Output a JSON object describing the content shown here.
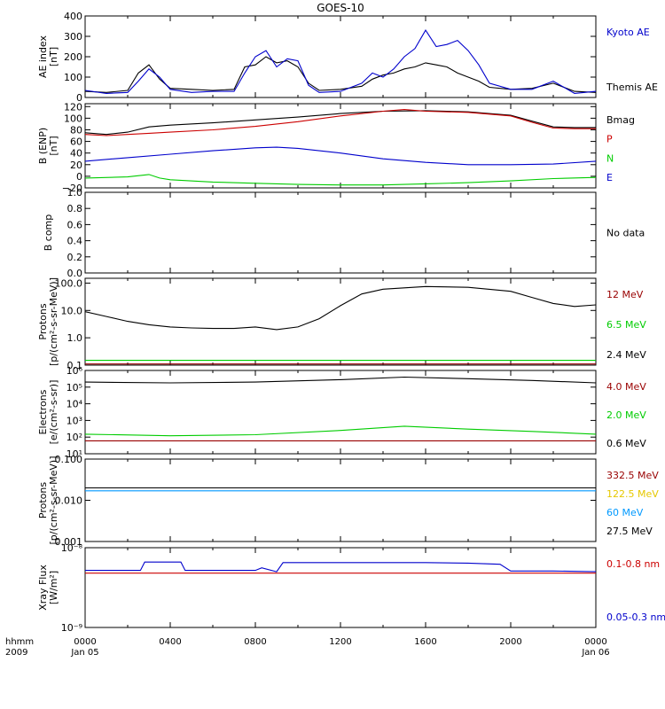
{
  "title": "GOES-10",
  "footer": {
    "row1_label": "hhmm",
    "row2_label": "2009"
  },
  "x_axis": {
    "ticks": [
      {
        "t": 0,
        "label": "0000",
        "sub": "Jan 05"
      },
      {
        "t": 4,
        "label": "0400",
        "sub": ""
      },
      {
        "t": 8,
        "label": "0800",
        "sub": ""
      },
      {
        "t": 12,
        "label": "1200",
        "sub": ""
      },
      {
        "t": 16,
        "label": "1600",
        "sub": ""
      },
      {
        "t": 20,
        "label": "2000",
        "sub": ""
      },
      {
        "t": 24,
        "label": "0000",
        "sub": "Jan 06"
      }
    ],
    "range_hours": [
      0,
      24
    ]
  },
  "colors": {
    "black": "#000000",
    "red": "#cc0000",
    "green": "#00cc00",
    "blue": "#0000cc",
    "darkred": "#990000",
    "yellow": "#e6c800",
    "cyan": "#0099ff"
  },
  "chart_data": [
    {
      "type": "line",
      "id": "ae",
      "ylabel": [
        "AE index",
        "[nT]"
      ],
      "yscale": "linear",
      "ylim": [
        0,
        400
      ],
      "ticks": [
        {
          "v": 0,
          "l": "0"
        },
        {
          "v": 100,
          "l": "100"
        },
        {
          "v": 200,
          "l": "200"
        },
        {
          "v": 300,
          "l": "300"
        },
        {
          "v": 400,
          "l": "400"
        }
      ],
      "legend": [
        {
          "name": "Kyoto AE",
          "color": "#0000cc"
        },
        {
          "name": "Themis AE",
          "color": "#000000"
        }
      ],
      "series": [
        {
          "name": "Themis AE",
          "color": "#000000",
          "x": [
            0,
            1,
            2,
            2.5,
            3,
            3.5,
            4,
            5,
            6,
            7,
            7.5,
            8,
            8.5,
            9,
            9.5,
            10,
            10.5,
            11,
            12,
            13,
            13.5,
            14,
            14.5,
            15,
            15.5,
            16,
            16.5,
            17,
            17.5,
            18,
            18.5,
            19,
            20,
            21,
            22,
            23,
            24
          ],
          "y": [
            30,
            25,
            35,
            120,
            160,
            90,
            45,
            40,
            35,
            40,
            150,
            160,
            200,
            170,
            180,
            150,
            70,
            35,
            40,
            55,
            90,
            110,
            120,
            140,
            150,
            170,
            160,
            150,
            120,
            100,
            80,
            50,
            40,
            45,
            70,
            30,
            25
          ]
        },
        {
          "name": "Kyoto AE",
          "color": "#0000cc",
          "x": [
            0,
            1,
            2,
            2.5,
            3,
            3.5,
            4,
            5,
            6,
            7,
            7.5,
            8,
            8.5,
            9,
            9.5,
            10,
            10.5,
            11,
            12,
            13,
            13.5,
            14,
            14.5,
            15,
            15.5,
            16,
            16.5,
            17,
            17.5,
            18,
            18.5,
            19,
            20,
            21,
            22,
            23,
            24
          ],
          "y": [
            35,
            20,
            25,
            80,
            140,
            100,
            40,
            25,
            30,
            30,
            120,
            200,
            230,
            150,
            190,
            180,
            60,
            25,
            30,
            70,
            120,
            100,
            140,
            200,
            240,
            330,
            250,
            260,
            280,
            230,
            160,
            70,
            40,
            40,
            80,
            20,
            30
          ]
        }
      ]
    },
    {
      "type": "line",
      "id": "b",
      "ylabel": [
        "B (ENP)",
        "[nT]"
      ],
      "yscale": "linear",
      "ylim": [
        -20,
        125
      ],
      "ticks": [
        {
          "v": -20,
          "l": "−20"
        },
        {
          "v": 0,
          "l": "0"
        },
        {
          "v": 20,
          "l": "20"
        },
        {
          "v": 40,
          "l": "40"
        },
        {
          "v": 60,
          "l": "60"
        },
        {
          "v": 80,
          "l": "80"
        },
        {
          "v": 100,
          "l": "100"
        },
        {
          "v": 120,
          "l": "120"
        }
      ],
      "legend": [
        {
          "name": "Bmag",
          "color": "#000000"
        },
        {
          "name": "P",
          "color": "#cc0000"
        },
        {
          "name": "N",
          "color": "#00cc00"
        },
        {
          "name": "E",
          "color": "#0000cc"
        }
      ],
      "series": [
        {
          "name": "Bmag",
          "color": "#000000",
          "x": [
            0,
            1,
            2,
            3,
            4,
            6,
            8,
            10,
            12,
            14,
            16,
            18,
            20,
            21,
            22,
            23,
            24
          ],
          "y": [
            75,
            72,
            76,
            85,
            88,
            92,
            97,
            102,
            108,
            112,
            113,
            111,
            105,
            95,
            85,
            84,
            84
          ]
        },
        {
          "name": "P",
          "color": "#cc0000",
          "x": [
            0,
            1,
            2,
            3,
            4,
            6,
            8,
            10,
            12,
            14,
            15,
            16,
            18,
            20,
            21,
            22,
            23,
            24
          ],
          "y": [
            72,
            70,
            72,
            74,
            76,
            80,
            86,
            94,
            104,
            112,
            115,
            112,
            110,
            104,
            93,
            83,
            82,
            82
          ]
        },
        {
          "name": "N",
          "color": "#00cc00",
          "x": [
            0,
            2,
            3,
            3.5,
            4,
            6,
            8,
            10,
            12,
            14,
            16,
            18,
            20,
            22,
            24
          ],
          "y": [
            -3,
            -1,
            3,
            -3,
            -6,
            -10,
            -12,
            -14,
            -15,
            -15,
            -13,
            -11,
            -8,
            -4,
            -2
          ]
        },
        {
          "name": "E",
          "color": "#0000cc",
          "x": [
            0,
            2,
            4,
            6,
            8,
            9,
            10,
            12,
            14,
            16,
            18,
            20,
            22,
            24
          ],
          "y": [
            26,
            32,
            38,
            44,
            49,
            50,
            48,
            40,
            30,
            24,
            20,
            20,
            21,
            26
          ]
        }
      ]
    },
    {
      "type": "line",
      "id": "bcomp",
      "ylabel": [
        "B comp"
      ],
      "yscale": "linear",
      "ylim": [
        0,
        1.0
      ],
      "ticks": [
        {
          "v": 0,
          "l": "0.0"
        },
        {
          "v": 0.2,
          "l": "0.2"
        },
        {
          "v": 0.4,
          "l": "0.4"
        },
        {
          "v": 0.6,
          "l": "0.6"
        },
        {
          "v": 0.8,
          "l": "0.8"
        },
        {
          "v": 1.0,
          "l": "1.0"
        }
      ],
      "legend": [
        {
          "name": "No data",
          "color": "#000000"
        }
      ],
      "series": []
    },
    {
      "type": "line",
      "id": "protons_low",
      "ylabel": [
        "Protons",
        "[p/(cm²-s-sr-MeV)]"
      ],
      "yscale": "log",
      "ylim": [
        0.1,
        150
      ],
      "ticks": [
        {
          "v": 0.1,
          "l": "0.1"
        },
        {
          "v": 1,
          "l": "1.0"
        },
        {
          "v": 10,
          "l": "10.0"
        },
        {
          "v": 100,
          "l": "100.0"
        }
      ],
      "legend": [
        {
          "name": "12 MeV",
          "color": "#990000"
        },
        {
          "name": "6.5 MeV",
          "color": "#00cc00"
        },
        {
          "name": "2.4 MeV",
          "color": "#000000"
        }
      ],
      "series": [
        {
          "name": "2.4 MeV",
          "color": "#000000",
          "x": [
            0,
            1,
            2,
            3,
            4,
            5,
            6,
            7,
            8,
            9,
            10,
            11,
            12,
            13,
            14,
            16,
            18,
            20,
            21,
            22,
            23,
            24
          ],
          "y": [
            9,
            6,
            4,
            3,
            2.5,
            2.3,
            2.2,
            2.2,
            2.5,
            2,
            2.5,
            5,
            15,
            40,
            60,
            75,
            70,
            50,
            30,
            18,
            14,
            16
          ]
        },
        {
          "name": "6.5 MeV",
          "color": "#00cc00",
          "x": [
            0,
            24
          ],
          "y": [
            0.15,
            0.15
          ]
        },
        {
          "name": "12 MeV",
          "color": "#990000",
          "x": [
            0,
            24
          ],
          "y": [
            0.11,
            0.11
          ]
        }
      ]
    },
    {
      "type": "line",
      "id": "electrons",
      "ylabel": [
        "Electrons",
        "[e/(cm²-s-sr)]"
      ],
      "yscale": "log",
      "ylim": [
        10,
        1000000
      ],
      "ticks": [
        {
          "v": 10,
          "l": "10¹"
        },
        {
          "v": 100,
          "l": "10²"
        },
        {
          "v": 1000,
          "l": "10³"
        },
        {
          "v": 10000,
          "l": "10⁴"
        },
        {
          "v": 100000,
          "l": "10⁵"
        },
        {
          "v": 1000000,
          "l": "10⁶"
        }
      ],
      "legend": [
        {
          "name": "4.0 MeV",
          "color": "#990000"
        },
        {
          "name": "2.0 MeV",
          "color": "#00cc00"
        },
        {
          "name": "0.6 MeV",
          "color": "#000000"
        }
      ],
      "series": [
        {
          "name": "0.6 MeV",
          "color": "#000000",
          "x": [
            0,
            4,
            8,
            12,
            15,
            18,
            21,
            24
          ],
          "y": [
            200000,
            180000,
            200000,
            280000,
            400000,
            320000,
            250000,
            180000
          ]
        },
        {
          "name": "2.0 MeV",
          "color": "#00cc00",
          "x": [
            0,
            4,
            8,
            12,
            15,
            18,
            21,
            24
          ],
          "y": [
            150,
            120,
            140,
            250,
            450,
            300,
            220,
            150
          ]
        },
        {
          "name": "4.0 MeV",
          "color": "#990000",
          "x": [
            0,
            24
          ],
          "y": [
            60,
            60
          ]
        }
      ]
    },
    {
      "type": "line",
      "id": "protons_high",
      "ylabel": [
        "Protons",
        "[p/(cm²-s-sr-MeV)]"
      ],
      "yscale": "log",
      "ylim": [
        0.001,
        0.1
      ],
      "ticks": [
        {
          "v": 0.001,
          "l": "0.001"
        },
        {
          "v": 0.01,
          "l": "0.010"
        },
        {
          "v": 0.1,
          "l": "0.100"
        }
      ],
      "legend": [
        {
          "name": "332.5 MeV",
          "color": "#990000"
        },
        {
          "name": "122.5 MeV",
          "color": "#e6c800"
        },
        {
          "name": "60 MeV",
          "color": "#0099ff"
        },
        {
          "name": "27.5 MeV",
          "color": "#000000"
        }
      ],
      "series": [
        {
          "name": "27.5 MeV",
          "color": "#000000",
          "x": [
            0,
            24
          ],
          "y": [
            0.02,
            0.02
          ]
        },
        {
          "name": "60 MeV",
          "color": "#0099ff",
          "x": [
            0,
            24
          ],
          "y": [
            0.017,
            0.017
          ]
        }
      ]
    },
    {
      "type": "line",
      "id": "xray",
      "ylabel": [
        "Xray Flux",
        "[W/m²]"
      ],
      "yscale": "log",
      "ylim": [
        1e-09,
        1e-08
      ],
      "ticks": [
        {
          "v": 1e-09,
          "l": "10⁻⁹"
        },
        {
          "v": 1e-08,
          "l": "10⁻⁸"
        }
      ],
      "legend": [
        {
          "name": "0.1-0.8 nm",
          "color": "#cc0000"
        },
        {
          "name": "0.05-0.3 nm",
          "color": "#0000cc"
        }
      ],
      "series": [
        {
          "name": "0.1-0.8 nm",
          "color": "#cc0000",
          "x": [
            0,
            24
          ],
          "y": [
            4.8e-09,
            4.8e-09
          ]
        },
        {
          "name": "0.05-0.3 nm",
          "color": "#0000cc",
          "x": [
            0,
            2.6,
            2.8,
            4.5,
            4.7,
            8,
            8.3,
            9,
            9.3,
            16,
            18,
            19.5,
            20,
            22,
            24
          ],
          "y": [
            5.2e-09,
            5.2e-09,
            6.6e-09,
            6.6e-09,
            5.2e-09,
            5.2e-09,
            5.6e-09,
            5e-09,
            6.5e-09,
            6.5e-09,
            6.4e-09,
            6.2e-09,
            5.1e-09,
            5.1e-09,
            5e-09
          ]
        }
      ]
    }
  ]
}
